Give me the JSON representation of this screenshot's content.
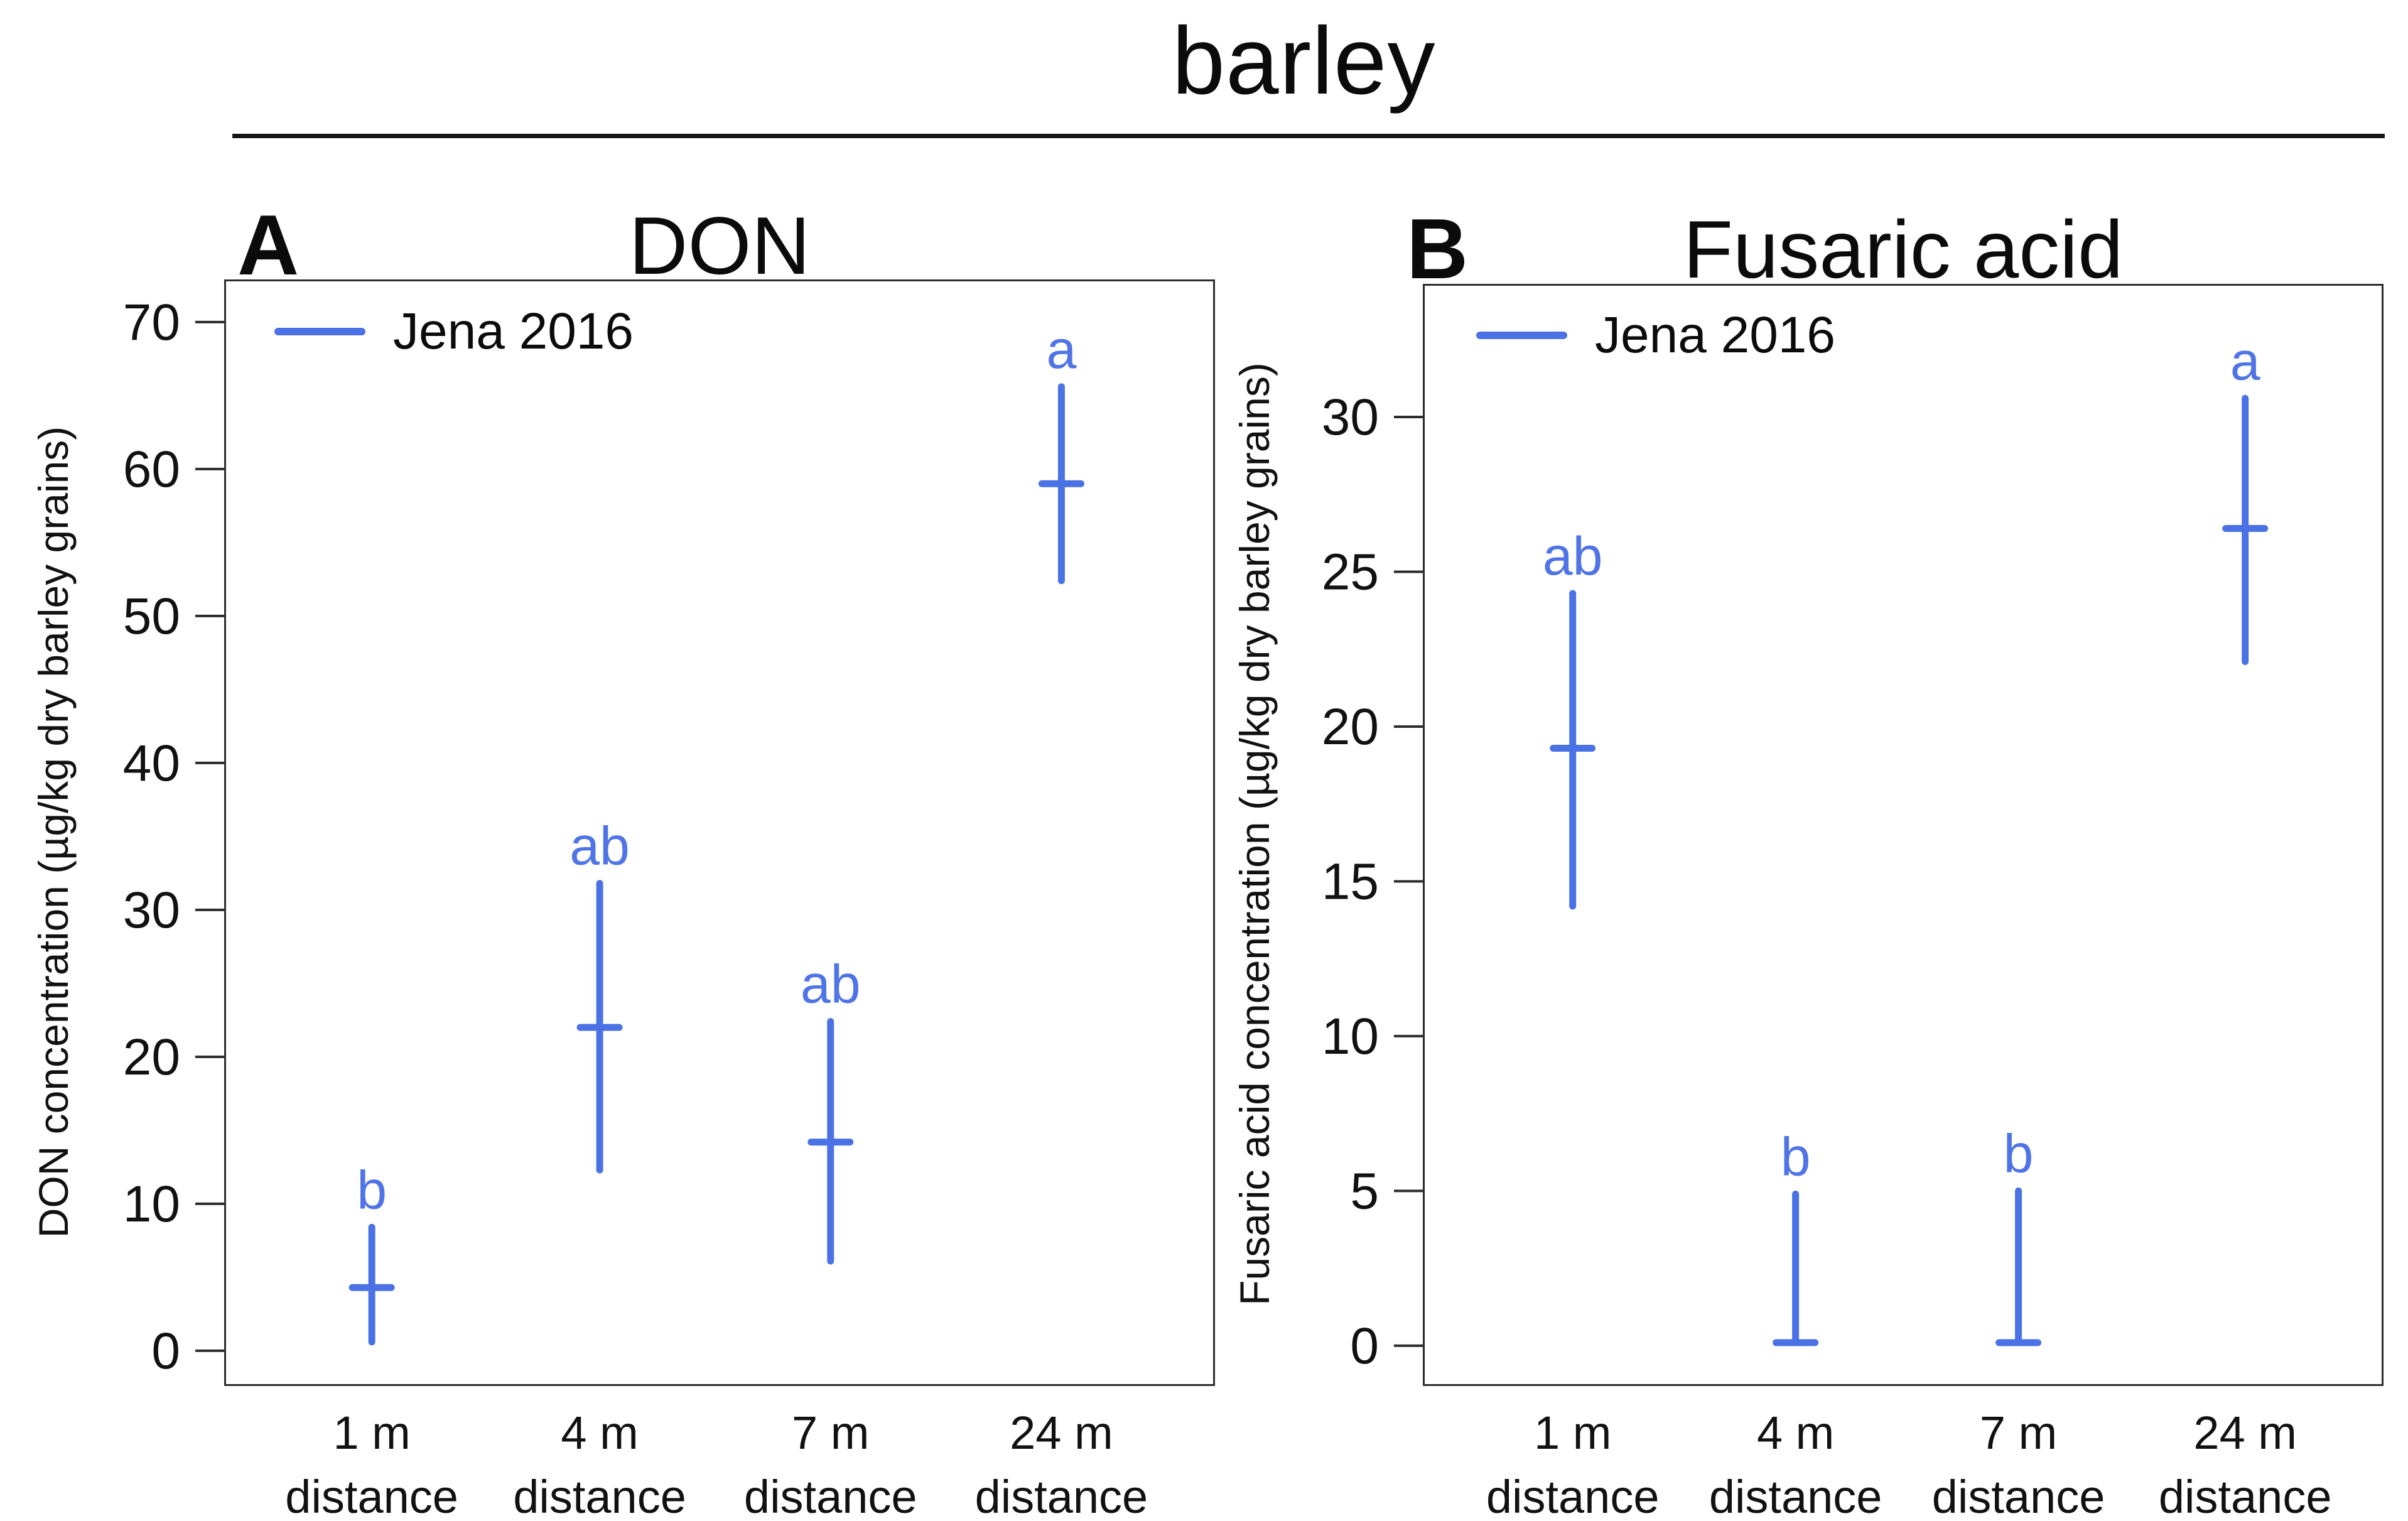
{
  "title": "barley",
  "colors": {
    "accent": "#4a72e4",
    "letter": "#4f74e6",
    "axis": "#2c2c2c",
    "text": "#111111"
  },
  "chart_data": [
    {
      "type": "errorbar",
      "panel_label": "A",
      "title": "DON",
      "ylabel": "DON concentration (µg/kg dry barley grains)",
      "legend": "Jena 2016",
      "legend_position": "top-left",
      "categories": [
        "1 m",
        "4 m",
        "7 m",
        "24 m"
      ],
      "category_line2": "distance",
      "means": [
        4.3,
        22.0,
        14.2,
        59.0
      ],
      "lower": [
        0.6,
        12.3,
        6.1,
        52.4
      ],
      "upper": [
        8.4,
        31.8,
        22.4,
        65.6
      ],
      "sig_letters": [
        "b",
        "ab",
        "ab",
        "a"
      ],
      "yticks": [
        0,
        10,
        20,
        30,
        40,
        50,
        60,
        70
      ],
      "ylim": [
        -2.4,
        72.9
      ],
      "grid": false
    },
    {
      "type": "errorbar",
      "panel_label": "B",
      "title": "Fusaric acid",
      "ylabel": "Fusaric acid concentration (µg/kg dry barley grains)",
      "legend": "Jena 2016",
      "legend_position": "top-left",
      "categories": [
        "1 m",
        "4 m",
        "7 m",
        "24 m"
      ],
      "category_line2": "distance",
      "means": [
        19.3,
        0.1,
        0.1,
        26.4
      ],
      "lower": [
        14.2,
        0.1,
        0.1,
        22.1
      ],
      "upper": [
        24.3,
        4.9,
        5.0,
        30.6
      ],
      "sig_letters": [
        "ab",
        "b",
        "b",
        "a"
      ],
      "yticks": [
        0,
        5,
        10,
        15,
        20,
        25,
        30
      ],
      "ylim": [
        -1.3,
        34.3
      ],
      "grid": false
    }
  ]
}
